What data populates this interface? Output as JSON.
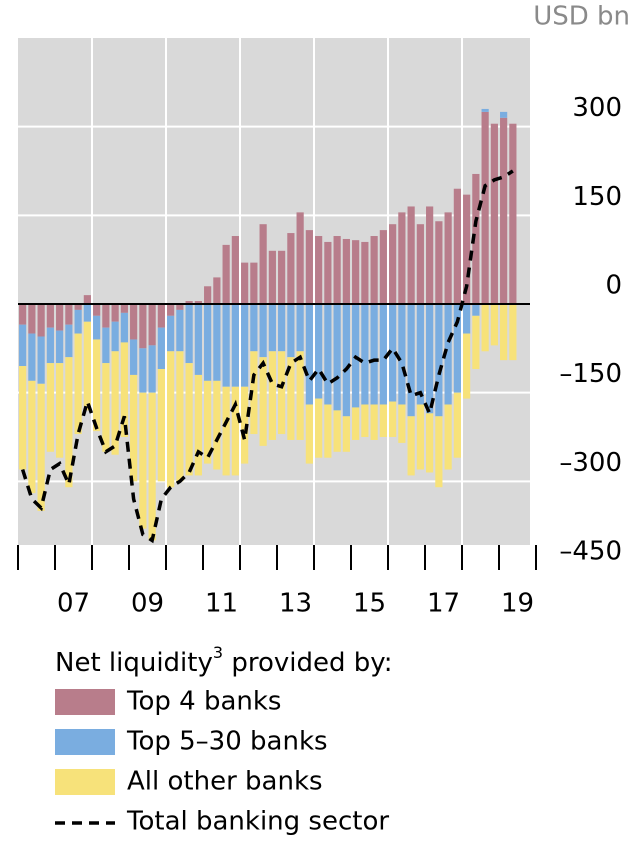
{
  "chart_data": {
    "type": "bar",
    "stacked": true,
    "unit_label": "USD bn",
    "legend_title": {
      "text": "Net liquidity",
      "sup": "3",
      "rest": " provided by:"
    },
    "categories": [
      null,
      null,
      null,
      null,
      null,
      null,
      null,
      null,
      null,
      null,
      null,
      null,
      null,
      null,
      null,
      null,
      null,
      null,
      null,
      null,
      null,
      null,
      null,
      null,
      null,
      null,
      null,
      null,
      null,
      null,
      null,
      null,
      null,
      null,
      null,
      null,
      null,
      null,
      null,
      null,
      null,
      null,
      null,
      null,
      null,
      null,
      null,
      null,
      null,
      null,
      null,
      null,
      null,
      null
    ],
    "xtick_labels": [
      "07",
      "09",
      "11",
      "13",
      "15",
      "17",
      "19"
    ],
    "ylim": [
      -450,
      450
    ],
    "yticks": [
      {
        "value": -450,
        "label": "–450"
      },
      {
        "value": -300,
        "label": "–300"
      },
      {
        "value": -150,
        "label": "–150"
      },
      0,
      150,
      300
    ],
    "grid": true,
    "series": [
      {
        "name": "Top 4 banks",
        "color": "#b87d8b",
        "values": [
          -35,
          -50,
          -55,
          -40,
          -45,
          -35,
          -10,
          15,
          -20,
          -40,
          -30,
          -15,
          -60,
          -75,
          -70,
          -40,
          -20,
          -10,
          5,
          5,
          30,
          45,
          100,
          115,
          70,
          70,
          135,
          90,
          90,
          120,
          155,
          125,
          115,
          105,
          115,
          110,
          108,
          105,
          115,
          125,
          135,
          155,
          165,
          135,
          165,
          140,
          155,
          195,
          185,
          220,
          325,
          305,
          315,
          305
        ]
      },
      {
        "name": "Top 5–30 banks",
        "color": "#7aade0",
        "values": [
          -70,
          -80,
          -80,
          -60,
          -55,
          -55,
          -40,
          -30,
          -40,
          -60,
          -50,
          -50,
          -60,
          -75,
          -80,
          -70,
          -60,
          -70,
          -100,
          -120,
          -130,
          -130,
          -140,
          -140,
          -140,
          -80,
          -90,
          -80,
          -80,
          -90,
          -80,
          -170,
          -160,
          -170,
          -180,
          -190,
          -175,
          -170,
          -170,
          -170,
          -165,
          -170,
          -190,
          -170,
          -185,
          -190,
          -170,
          -150,
          -50,
          -20,
          5,
          0,
          10,
          0
        ]
      },
      {
        "name": "All other banks",
        "color": "#f7e27a",
        "values": [
          -175,
          -190,
          -215,
          -150,
          -160,
          -220,
          -170,
          -150,
          -155,
          -150,
          -175,
          -160,
          -180,
          -230,
          -250,
          -190,
          -230,
          -220,
          -190,
          -170,
          -140,
          -150,
          -150,
          -150,
          -130,
          -140,
          -150,
          -150,
          -140,
          -140,
          -150,
          -100,
          -100,
          -90,
          -70,
          -60,
          -55,
          -55,
          -60,
          -55,
          -60,
          -65,
          -100,
          -110,
          -100,
          -120,
          -110,
          -110,
          -110,
          -90,
          -80,
          -70,
          -95,
          -95
        ]
      },
      {
        "name": "Total banking sector",
        "type": "line",
        "dashed": true,
        "color": "#000000",
        "values": [
          -280,
          -330,
          -345,
          -280,
          -270,
          -305,
          -220,
          -165,
          -210,
          -250,
          -240,
          -190,
          -330,
          -390,
          -400,
          -330,
          -310,
          -300,
          -285,
          -250,
          -260,
          -230,
          -200,
          -170,
          -230,
          -120,
          -100,
          -135,
          -140,
          -100,
          -90,
          -130,
          -110,
          -135,
          -125,
          -110,
          -90,
          -100,
          -95,
          -95,
          -75,
          -100,
          -155,
          -150,
          -185,
          -120,
          -65,
          -30,
          30,
          140,
          200,
          210,
          215,
          225
        ]
      }
    ]
  }
}
